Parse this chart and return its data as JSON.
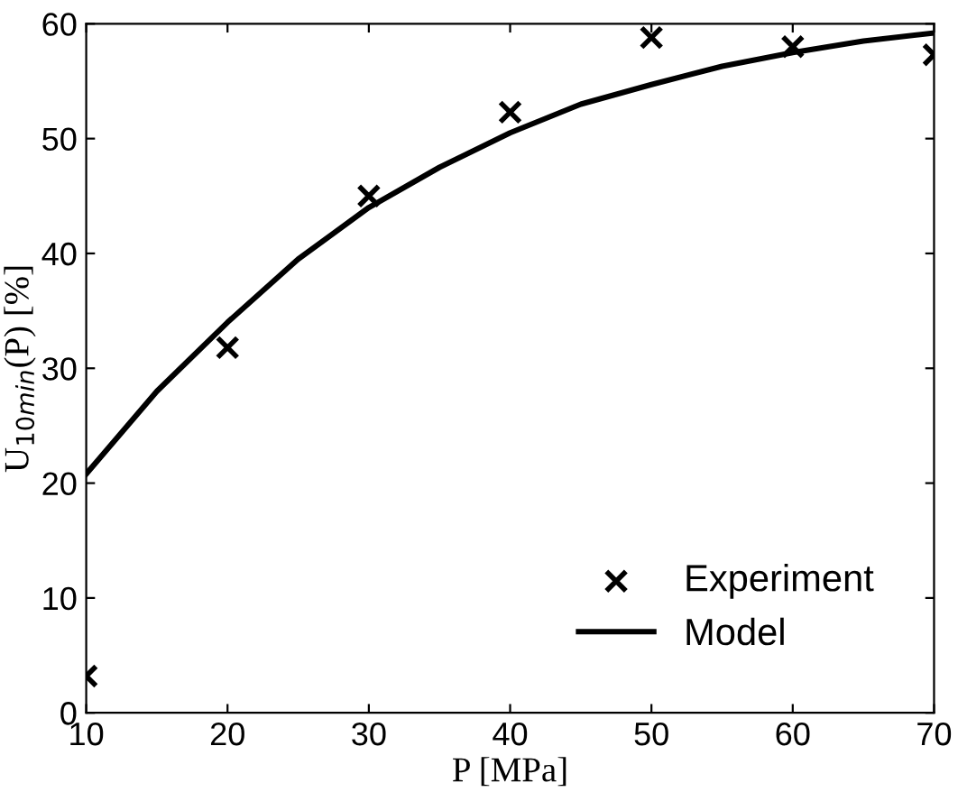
{
  "chart_data": {
    "type": "scatter",
    "xlabel": "P [MPa]",
    "ylabel": "U$_{10min}$(P) [%]",
    "xlim": [
      10,
      70
    ],
    "xticks": [
      10,
      20,
      30,
      40,
      50,
      60,
      70
    ],
    "ylim": [
      0,
      60
    ],
    "yticks": [
      0,
      10,
      20,
      30,
      40,
      50,
      60
    ],
    "grid": false,
    "legend": "bottom right",
    "series": [
      {
        "name": "Experiment",
        "marker": "cross",
        "color": "#000000",
        "x": [
          10,
          20,
          30,
          40,
          50,
          60,
          70
        ],
        "values": [
          3.2,
          31.8,
          45,
          52.3,
          58.8,
          58,
          57.3
        ]
      },
      {
        "name": "Model",
        "type": "line",
        "marker": "none",
        "line_style": "solid",
        "color": "#000000",
        "x": [
          10,
          15,
          20,
          25,
          30,
          35,
          40,
          45,
          50,
          55,
          60,
          65,
          70
        ],
        "values": [
          20.8,
          28,
          34,
          39.5,
          44,
          47.5,
          50.5,
          53,
          54.7,
          56.3,
          57.5,
          58.5,
          59.2
        ]
      }
    ]
  }
}
